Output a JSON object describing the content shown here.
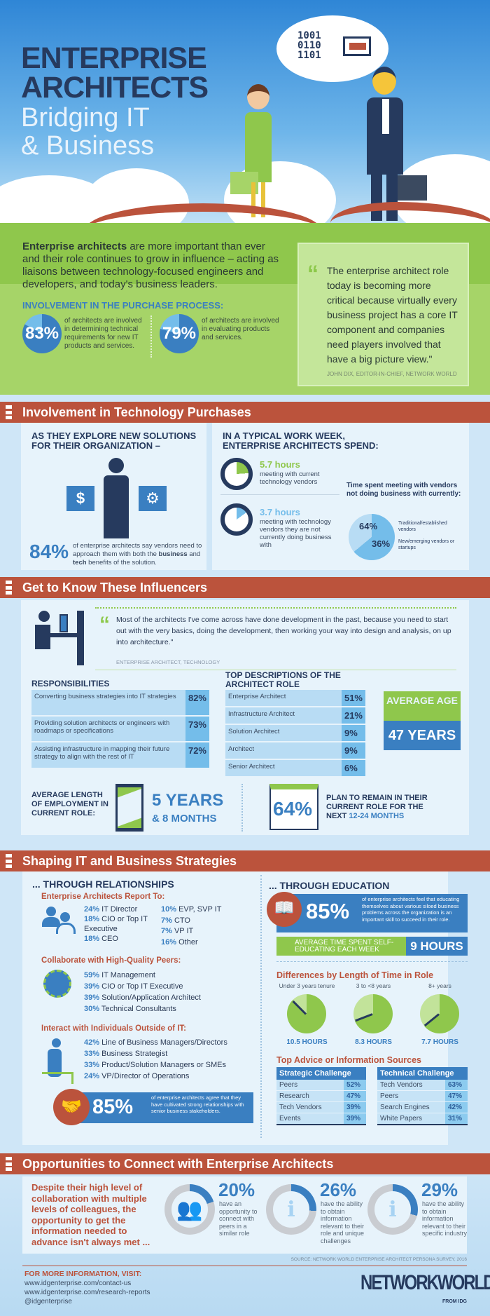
{
  "hero": {
    "title_line1": "ENTERPRISE",
    "title_line2": "ARCHITECTS",
    "subtitle_line1": "Bridging IT",
    "subtitle_line2": "& Business",
    "bubble_binary": "1001\n0110\n1101"
  },
  "intro": {
    "lead_bold": "Enterprise architects",
    "lead_rest": " are more important than ever and their role continues to grow in influence – acting as liaisons between technology-focused engineers and developers, and today's business leaders.",
    "purchase_heading": "INVOLVEMENT IN THE PURCHASE PROCESS:",
    "stats": [
      {
        "value": "83%",
        "text": "of architects are involved in determining technical requirements for new IT products and services."
      },
      {
        "value": "79%",
        "text": "of architects are involved in evaluating products and services."
      }
    ],
    "quote": "The enterprise architect role today is becoming more critical because virtually every business project has a core IT component and companies need players involved that have a big picture view.\"",
    "quote_author": "JOHN DIX, EDITOR-IN-CHIEF, NETWORK WORLD"
  },
  "purchases": {
    "title": "Involvement in Technology Purchases",
    "left_heading": "AS THEY EXPLORE NEW SOLUTIONS FOR THEIR ORGANIZATION –",
    "stat_value": "84%",
    "stat_text_a": "of enterprise architects say vendors need to approach them with both the ",
    "stat_bold1": "business",
    "stat_and": " and ",
    "stat_bold2": "tech",
    "stat_text_b": " benefits of the solution.",
    "right_heading": "IN A TYPICAL WORK WEEK, ENTERPRISE ARCHITECTS SPEND:",
    "hours": [
      {
        "value": "5.7 hours",
        "text": "meeting with current technology vendors"
      },
      {
        "value": "3.7 hours",
        "text": "meeting with technology vendors they are not currently doing business with"
      }
    ],
    "vendor_heading": "Time spent meeting with vendors not doing business with currently:",
    "vendor_split": [
      {
        "value": "64%",
        "label": "Traditional/established vendors"
      },
      {
        "value": "36%",
        "label": "New/emerging vendors or startups"
      }
    ]
  },
  "influencers": {
    "title": "Get to Know These Influencers",
    "quote": "Most of the architects I've come across have done development in the past, because you need to start out with the very basics, doing the development, then working your way into design and analysis, on up into architecture.\"",
    "quote_author": "ENTERPRISE ARCHITECT, TECHNOLOGY",
    "responsibilities": {
      "heading": "RESPONSIBILITIES",
      "rows": [
        {
          "label": "Converting business strategies into IT strategies",
          "value": "82%"
        },
        {
          "label": "Providing solution architects or engineers with roadmaps or specifications",
          "value": "73%"
        },
        {
          "label": "Assisting infrastructure in mapping their future strategy to align with the rest of IT",
          "value": "72%"
        }
      ]
    },
    "descriptions": {
      "heading": "TOP DESCRIPTIONS OF THE ARCHITECT ROLE",
      "rows": [
        {
          "label": "Enterprise Architect",
          "value": "51%"
        },
        {
          "label": "Infrastructure Architect",
          "value": "21%"
        },
        {
          "label": "Solution Architect",
          "value": "9%"
        },
        {
          "label": "Architect",
          "value": "9%"
        },
        {
          "label": "Senior Architect",
          "value": "6%"
        }
      ]
    },
    "age_label": "AVERAGE AGE",
    "age_value": "47 YEARS",
    "tenure_label": "AVERAGE LENGTH OF EMPLOYMENT IN CURRENT ROLE:",
    "tenure_years": "5 YEARS",
    "tenure_months": "& 8 MONTHS",
    "remain_value": "64%",
    "remain_text": "PLAN TO REMAIN IN THEIR CURRENT ROLE FOR THE NEXT ",
    "remain_period": "12-24 MONTHS"
  },
  "strategies": {
    "title": "Shaping IT and Business Strategies",
    "relationships_heading": "... THROUGH RELATIONSHIPS",
    "report_heading": "Enterprise Architects Report To:",
    "report_col1": [
      {
        "pct": "24%",
        "label": "IT Director"
      },
      {
        "pct": "18%",
        "label": "CIO or Top IT Executive"
      },
      {
        "pct": "18%",
        "label": "CEO"
      }
    ],
    "report_col2": [
      {
        "pct": "10%",
        "label": "EVP, SVP IT"
      },
      {
        "pct": "7%",
        "label": "CTO"
      },
      {
        "pct": "7%",
        "label": "VP IT"
      },
      {
        "pct": "16%",
        "label": "Other"
      }
    ],
    "peers_heading": "Collaborate with High-Quality Peers:",
    "peers": [
      {
        "pct": "59%",
        "label": "IT Management"
      },
      {
        "pct": "39%",
        "label": "CIO or Top IT Executive"
      },
      {
        "pct": "39%",
        "label": "Solution/Application Architect"
      },
      {
        "pct": "30%",
        "label": "Technical Consultants"
      }
    ],
    "outside_heading": "Interact with Individuals Outside of IT:",
    "outside": [
      {
        "pct": "42%",
        "label": "Line of Business Managers/Directors"
      },
      {
        "pct": "33%",
        "label": "Business Strategist"
      },
      {
        "pct": "33%",
        "label": "Product/Solution Managers or SMEs"
      },
      {
        "pct": "24%",
        "label": "VP/Director of Operations"
      }
    ],
    "relationships_stat": "85%",
    "relationships_text": "of enterprise architects agree that they have cultivated strong relationships with senior business stakeholders.",
    "education_heading": "... THROUGH EDUCATION",
    "education_stat": "85%",
    "education_text": "of enterprise architects feel that educating themselves about various siloed business problems across the organization is an important skill to succeed in their role.",
    "selfed_label": "AVERAGE TIME SPENT SELF-EDUCATING EACH WEEK",
    "selfed_value": "9 HOURS",
    "tenure_heading": "Differences by Length of Time in Role",
    "tenure_groups": [
      {
        "label": "Under 3 years tenure",
        "hours": "10.5 HOURS",
        "value": 10.5
      },
      {
        "label": "3 to <8 years",
        "hours": "8.3 HOURS",
        "value": 8.3
      },
      {
        "label": "8+ years",
        "hours": "7.7 HOURS",
        "value": 7.7
      }
    ],
    "sources_heading": "Top Advice or Information Sources",
    "strategic": {
      "heading": "Strategic Challenge",
      "rows": [
        {
          "label": "Peers",
          "value": "52%"
        },
        {
          "label": "Research",
          "value": "47%"
        },
        {
          "label": "Tech Vendors",
          "value": "39%"
        },
        {
          "label": "Events",
          "value": "39%"
        }
      ]
    },
    "technical": {
      "heading": "Technical Challenge",
      "rows": [
        {
          "label": "Tech Vendors",
          "value": "63%"
        },
        {
          "label": "Peers",
          "value": "47%"
        },
        {
          "label": "Search Engines",
          "value": "42%"
        },
        {
          "label": "White Papers",
          "value": "31%"
        }
      ]
    }
  },
  "opportunities": {
    "title": "Opportunities to Connect with Enterprise Architects",
    "lead": "Despite their high level of collaboration with multiple levels of colleagues, the opportunity to get the information needed to advance isn't always met ...",
    "stats": [
      {
        "value": "20%",
        "fraction": 0.2,
        "text": "have an opportunity to connect with peers in a similar role",
        "icon": "handshake-people-icon"
      },
      {
        "value": "26%",
        "fraction": 0.26,
        "text": "have the ability to obtain information relevant to their role and unique challenges",
        "icon": "info-icon"
      },
      {
        "value": "29%",
        "fraction": 0.29,
        "text": "have the ability to obtain information relevant to their specific industry",
        "icon": "info-icon"
      }
    ],
    "source": "SOURCE: NETWORK WORLD ENTERPRISE ARCHITECT PERSONA SURVEY, 2016"
  },
  "footer": {
    "more_info": "FOR MORE INFORMATION, VISIT:",
    "links": [
      "www.idgenterprise.com/contact-us",
      "www.idgenterprise.com/research-reports",
      "@idgenterprise"
    ],
    "logo": "NETWORKWORLD",
    "logo_sub": "FROM IDG"
  },
  "colors": {
    "navy": "#263a5e",
    "blue": "#3a7fc1",
    "green": "#8fc74c",
    "red": "#bb533c",
    "light": "#e7f3fb"
  }
}
